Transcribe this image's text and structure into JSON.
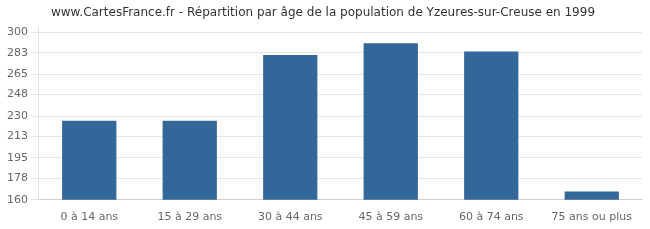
{
  "chart_data": {
    "type": "bar",
    "title": "www.CartesFrance.fr - Répartition par âge de la population de Yzeures-sur-Creuse en 1999",
    "categories": [
      "0 à 14 ans",
      "15 à 29 ans",
      "30 à 44 ans",
      "45 à 59 ans",
      "60 à 74 ans",
      "75 ans ou plus"
    ],
    "values": [
      226,
      226,
      281,
      291,
      284,
      167
    ],
    "color": "#336699",
    "ylim": [
      160,
      305
    ],
    "yticks": [
      160,
      178,
      195,
      213,
      230,
      248,
      265,
      283,
      300
    ],
    "grid": true
  }
}
